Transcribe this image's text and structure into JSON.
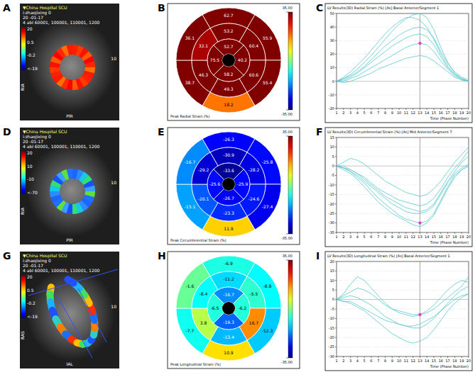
{
  "images": [
    {
      "letter": "A",
      "header": [
        "▼China Hospital SCU",
        "i:zhaojixing 0",
        "20 -01-17",
        "4 abl 60001, 100001, 110001, 1200"
      ],
      "scale_labels": [
        "20",
        "0.5",
        "-0.2",
        "<-19"
      ],
      "left_label": "RIA",
      "right_label": "10",
      "bottom_label": "PIR"
    },
    {
      "letter": "D",
      "header": [
        "▼China Hospital SCU",
        "i:zhaojixing 0",
        "20 -01-17",
        "4 abl 60001, 100001, 110001, 1200"
      ],
      "scale_labels": [
        "20",
        "10",
        "-10",
        "<-70"
      ],
      "left_label": "RIA",
      "right_label": "10",
      "bottom_label": "PIR"
    },
    {
      "letter": "G",
      "header": [
        "▼China Hospital SCU",
        "i:zhaojixing 0",
        "20 -01-17",
        "4 abl 60001, 100001, 110001, 1200"
      ],
      "scale_labels": [
        "20",
        "0.5",
        "-0.2",
        "<-19"
      ],
      "left_label": "RAS",
      "right_label": "10",
      "bottom_label": "IAL"
    }
  ],
  "bullseyes": [
    {
      "letter": "B",
      "caption": "Peak Radial Strain (%)",
      "data_labels": true,
      "values": [
        62.7,
        55.9,
        55.4,
        18.2,
        38.7,
        36.1,
        53.2,
        60.4,
        60.6,
        49.3,
        46.3,
        32.1,
        52.7,
        40.2,
        58.2,
        75.5
      ],
      "colorbar": {
        "range": [
          -35,
          35
        ],
        "ticks": [
          {
            "value": 35,
            "label": "35.00"
          },
          {
            "value": -35,
            "label": "-35.00"
          }
        ]
      }
    },
    {
      "letter": "E",
      "caption": "Peak Circumferential Strain (%)",
      "data_labels": true,
      "values": [
        -26.3,
        -25.8,
        -27.4,
        11.9,
        -15.1,
        -16.7,
        -30.9,
        -28.2,
        -24.6,
        -23.3,
        -20.1,
        -29.2,
        -33.6,
        -25.9,
        -26.7,
        -25.6
      ],
      "colorbar": {
        "range": [
          -35,
          35
        ],
        "ticks": [
          {
            "value": 35,
            "label": "35.00"
          },
          {
            "value": -35,
            "label": "-35.00"
          }
        ]
      }
    },
    {
      "letter": "H",
      "caption": "Peak Longitudinal Strain (%)",
      "data_labels": true,
      "values": [
        -6.9,
        -8.8,
        -12.3,
        10.9,
        -7.7,
        -1.6,
        -11.2,
        -5.5,
        16.7,
        -13.4,
        3.8,
        -8.4,
        -16.7,
        -6.2,
        -19.3,
        -6.5
      ],
      "colorbar": {
        "range": [
          -35,
          35
        ],
        "ticks": [
          {
            "value": 35,
            "label": "35.00"
          },
          {
            "value": -35,
            "label": "-35.00"
          }
        ]
      }
    }
  ],
  "chart_data": [
    {
      "letter": "C",
      "type": "line",
      "title": "LV Results(3D) Radial Strain (%) [As] Basal Anterior/Segment 1",
      "x_label": "Time (Phase Number)",
      "grid": true,
      "x": [
        1,
        2,
        3,
        4,
        5,
        6,
        7,
        8,
        9,
        10,
        11,
        12,
        13,
        14,
        15,
        16,
        17,
        18,
        19,
        20
      ],
      "xlim": [
        1,
        20
      ],
      "xticks": [
        1,
        2,
        3,
        4,
        5,
        6,
        7,
        8,
        9,
        10,
        11,
        12,
        13,
        14,
        15,
        16,
        17,
        18,
        19,
        20
      ],
      "ylim": [
        -20,
        50
      ],
      "yticks": [
        -20,
        -10,
        0,
        10,
        20,
        30,
        40,
        50
      ],
      "series": [
        {
          "color": "#55c6cf",
          "values": [
            0,
            2,
            5,
            9,
            14,
            19,
            25,
            31,
            37,
            42,
            46,
            49,
            50,
            47,
            38,
            25,
            14,
            6,
            2,
            0
          ]
        },
        {
          "color": "#55c6cf",
          "values": [
            0,
            1,
            3,
            6,
            10,
            14,
            18,
            22,
            26,
            29,
            32,
            34,
            35,
            33,
            27,
            18,
            10,
            5,
            2,
            0
          ]
        },
        {
          "color": "#55c6cf",
          "values": [
            0,
            0,
            2,
            4,
            7,
            10,
            13,
            16,
            19,
            22,
            25,
            27,
            28,
            27,
            22,
            15,
            9,
            4,
            1,
            0
          ]
        },
        {
          "color": "#55c6cf",
          "values": [
            0,
            2,
            4,
            7,
            11,
            16,
            21,
            26,
            30,
            34,
            37,
            39,
            40,
            38,
            32,
            22,
            13,
            7,
            3,
            1
          ]
        },
        {
          "color": "#55c6cf",
          "values": [
            0,
            -1,
            0,
            2,
            4,
            6,
            9,
            11,
            13,
            15,
            17,
            18,
            19,
            18,
            15,
            11,
            7,
            3,
            1,
            0
          ]
        },
        {
          "color": "#55c6cf",
          "values": [
            0,
            3,
            7,
            12,
            17,
            23,
            29,
            35,
            40,
            44,
            47,
            47,
            45,
            40,
            31,
            20,
            11,
            5,
            2,
            0
          ]
        }
      ],
      "highlight": {
        "x": 13,
        "y": 28,
        "color": "#e040c8"
      }
    },
    {
      "letter": "F",
      "type": "line",
      "title": "LV Results(3D) Circumferential Strain (%) [As] Mid Anterior/Segment 7",
      "x_label": "Time (Phase Number)",
      "grid": true,
      "x": [
        1,
        2,
        3,
        4,
        5,
        6,
        7,
        8,
        9,
        10,
        11,
        12,
        13,
        14,
        15,
        16,
        17,
        18,
        19,
        20
      ],
      "xlim": [
        1,
        20
      ],
      "xticks": [
        1,
        2,
        3,
        4,
        5,
        6,
        7,
        8,
        9,
        10,
        11,
        12,
        13,
        14,
        15,
        16,
        17,
        18,
        19,
        20
      ],
      "ylim": [
        -35,
        15
      ],
      "yticks": [
        -35,
        -30,
        -25,
        -20,
        -15,
        -10,
        -5,
        0,
        5,
        10,
        15
      ],
      "series": [
        {
          "color": "#55c6cf",
          "values": [
            0,
            -1,
            -3,
            -6,
            -9,
            -13,
            -17,
            -20,
            -23,
            -26,
            -28,
            -29,
            -30,
            -29,
            -25,
            -18,
            -11,
            -5,
            -2,
            0
          ]
        },
        {
          "color": "#55c6cf",
          "values": [
            0,
            -1,
            -2,
            -4,
            -7,
            -10,
            -13,
            -16,
            -18,
            -20,
            -22,
            -23,
            -24,
            -23,
            -20,
            -14,
            -8,
            -3,
            2,
            5
          ]
        },
        {
          "color": "#55c6cf",
          "values": [
            0,
            0,
            -2,
            -4,
            -6,
            -9,
            -12,
            -14,
            -16,
            -18,
            -19,
            -20,
            -21,
            -20,
            -17,
            -12,
            -6,
            -1,
            3,
            8
          ]
        },
        {
          "color": "#55c6cf",
          "values": [
            0,
            2,
            4,
            3,
            1,
            -2,
            -5,
            -8,
            -10,
            -12,
            -14,
            -15,
            -16,
            -15,
            -12,
            -8,
            -3,
            2,
            6,
            10
          ]
        },
        {
          "color": "#55c6cf",
          "values": [
            0,
            -2,
            -4,
            -7,
            -11,
            -15,
            -19,
            -22,
            -25,
            -27,
            -29,
            -31,
            -32,
            -30,
            -26,
            -19,
            -12,
            -6,
            -2,
            0
          ]
        },
        {
          "color": "#55c6cf",
          "values": [
            0,
            -1,
            -3,
            -5,
            -8,
            -11,
            -14,
            -17,
            -20,
            -22,
            -24,
            -25,
            -25,
            -24,
            -21,
            -15,
            -9,
            -4,
            -1,
            1
          ]
        }
      ],
      "highlight": {
        "x": 13,
        "y": -30,
        "color": "#e040c8"
      }
    },
    {
      "letter": "I",
      "type": "line",
      "title": "LV Results(3D) Longitudinal Strain (%) [As] Basal Anterior/Segment 1",
      "x_label": "Time (Phase Number)",
      "grid": true,
      "x": [
        1,
        2,
        3,
        4,
        5,
        6,
        7,
        8,
        9,
        10,
        11,
        12,
        13,
        14,
        15,
        16,
        17,
        18,
        19,
        20
      ],
      "xlim": [
        1,
        20
      ],
      "xticks": [
        1,
        2,
        3,
        4,
        5,
        6,
        7,
        8,
        9,
        10,
        11,
        12,
        13,
        14,
        15,
        16,
        17,
        18,
        19,
        20
      ],
      "ylim": [
        -30,
        20
      ],
      "yticks": [
        -30,
        -25,
        -20,
        -15,
        -10,
        -5,
        0,
        5,
        10,
        15,
        20
      ],
      "series": [
        {
          "color": "#55c6cf",
          "values": [
            0,
            3,
            8,
            12,
            10,
            6,
            2,
            -2,
            -5,
            -7,
            -8,
            -9,
            -8,
            -6,
            -3,
            1,
            5,
            8,
            10,
            9
          ]
        },
        {
          "color": "#55c6cf",
          "values": [
            0,
            1,
            2,
            1,
            -1,
            -3,
            -6,
            -9,
            -11,
            -13,
            -14,
            -15,
            -15,
            -13,
            -10,
            -6,
            -2,
            2,
            5,
            7
          ]
        },
        {
          "color": "#55c6cf",
          "values": [
            0,
            -1,
            -2,
            -4,
            -6,
            -9,
            -12,
            -15,
            -18,
            -20,
            -22,
            -23,
            -22,
            -20,
            -16,
            -11,
            -6,
            -2,
            1,
            3
          ]
        },
        {
          "color": "#55c6cf",
          "values": [
            0,
            2,
            4,
            6,
            5,
            3,
            0,
            -3,
            -5,
            -6,
            -7,
            -8,
            -8,
            -7,
            -5,
            -2,
            1,
            4,
            7,
            12
          ]
        },
        {
          "color": "#55c6cf",
          "values": [
            0,
            -1,
            -1,
            -3,
            -5,
            -7,
            -9,
            -11,
            -12,
            -13,
            -14,
            -14,
            -13,
            -11,
            -9,
            -6,
            -3,
            0,
            2,
            3
          ]
        }
      ],
      "highlight": {
        "x": 13,
        "y": -8,
        "color": "#e040c8"
      }
    }
  ]
}
